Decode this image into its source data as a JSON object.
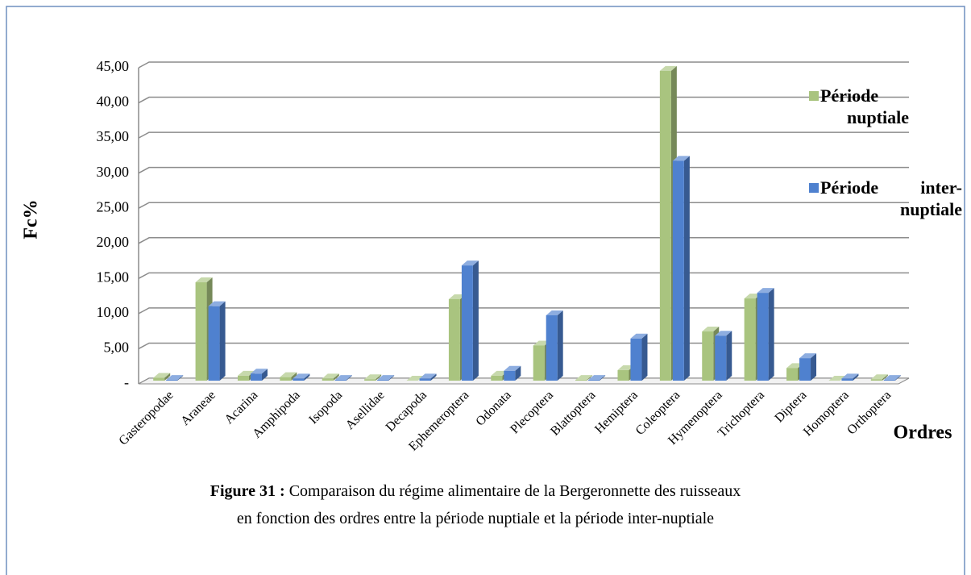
{
  "chart_data": {
    "type": "bar3d",
    "y_label": "Fc%",
    "x_label": "Ordres",
    "categories": [
      "Gasteropodae",
      "Araneae",
      "Acarina",
      "Amphipoda",
      "Isopoda",
      "Asellidae",
      "Decapoda",
      "Ephemeroptera",
      "Odonata",
      "Plecoptera",
      "Blattoptera",
      "Hemiptera",
      "Coleoptera",
      "Hymenoptera",
      "Trichoptera",
      "Diptera",
      "Homoptera",
      "Orthoptera"
    ],
    "series": [
      {
        "name": "Période nuptiale",
        "color": "#a9c47f",
        "values": [
          0.4,
          14.0,
          0.7,
          0.5,
          0.3,
          0.2,
          0.0,
          11.6,
          0.7,
          5.0,
          0.1,
          1.5,
          44.1,
          7.0,
          11.7,
          1.8,
          0.0,
          0.2
        ]
      },
      {
        "name": "Période inter-nuptiale",
        "color": "#4f81cf",
        "values": [
          0.1,
          10.6,
          1.0,
          0.3,
          0.1,
          0.1,
          0.3,
          16.4,
          1.4,
          9.3,
          0.1,
          6.0,
          31.3,
          6.4,
          12.5,
          3.2,
          0.3,
          0.1
        ]
      }
    ],
    "ylim": [
      0,
      45
    ],
    "yticks": [
      {
        "value": 0,
        "label": "-"
      },
      {
        "value": 5,
        "label": "5,00"
      },
      {
        "value": 10,
        "label": "10,00"
      },
      {
        "value": 15,
        "label": "15,00"
      },
      {
        "value": 20,
        "label": "20,00"
      },
      {
        "value": 25,
        "label": "25,00"
      },
      {
        "value": 30,
        "label": "30,00"
      },
      {
        "value": 35,
        "label": "35,00"
      },
      {
        "value": 40,
        "label": "40,00"
      },
      {
        "value": 45,
        "label": "45,00"
      }
    ],
    "grid": true
  },
  "caption": {
    "label": "Figure 31 :",
    "text": "Comparaison du régime alimentaire de la Bergeronnette des ruisseaux en fonction des ordres entre la période nuptiale et la période inter-nuptiale"
  }
}
